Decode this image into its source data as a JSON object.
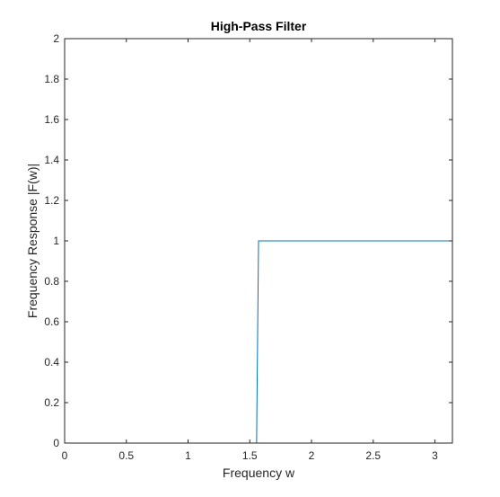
{
  "chart_data": {
    "type": "line",
    "title": "High-Pass Filter",
    "xlabel": "Frequency w",
    "ylabel": "Frequency Response |F(w)|",
    "xlim": [
      0,
      3.1416
    ],
    "ylim": [
      0,
      2
    ],
    "xticks": [
      0,
      0.5,
      1,
      1.5,
      2,
      2.5,
      3
    ],
    "xtick_labels": [
      "0",
      "0.5",
      "1",
      "1.5",
      "2",
      "2.5",
      "3"
    ],
    "yticks": [
      0,
      0.2,
      0.4,
      0.6,
      0.8,
      1,
      1.2,
      1.4,
      1.6,
      1.8,
      2
    ],
    "ytick_labels": [
      "0",
      "0.2",
      "0.4",
      "0.6",
      "0.8",
      "1",
      "1.2",
      "1.4",
      "1.6",
      "1.8",
      "2"
    ],
    "grid": false,
    "legend": "none",
    "series": [
      {
        "color": "#0072BD",
        "x": [
          0,
          1.5551,
          1.5708,
          3.1416
        ],
        "y": [
          0,
          0,
          1,
          1
        ]
      }
    ]
  },
  "colors": {
    "axes": "#262626",
    "series": "#0072BD",
    "background": "#ffffff"
  }
}
